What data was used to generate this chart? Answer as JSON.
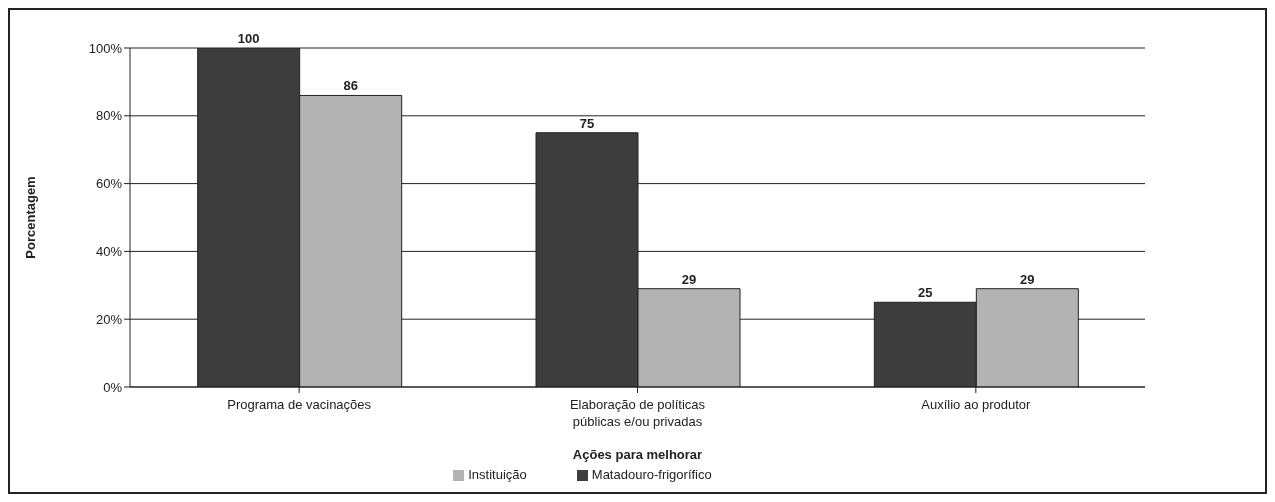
{
  "chart_data": {
    "type": "bar",
    "xlabel": "Ações para melhorar",
    "ylabel": "Porcentagem",
    "categories": [
      "Programa de vacinações",
      "Elaboração de políticas públicas e/ou privadas",
      "Auxílio ao produtor"
    ],
    "series": [
      {
        "name": "Matadouro-frigorífico",
        "color": "#3d3d3d",
        "values": [
          100,
          75,
          25
        ]
      },
      {
        "name": "Instituição",
        "color": "#b3b3b3",
        "values": [
          86,
          29,
          29
        ]
      }
    ],
    "ylim": [
      0,
      100
    ],
    "yticks": [
      {
        "value": 0,
        "label": "0%"
      },
      {
        "value": 20,
        "label": "20%"
      },
      {
        "value": 40,
        "label": "40%"
      },
      {
        "value": 60,
        "label": "60%"
      },
      {
        "value": 80,
        "label": "80%"
      },
      {
        "value": 100,
        "label": "100%"
      }
    ],
    "grid": "y",
    "legend": "bottom",
    "data_labels": true
  }
}
